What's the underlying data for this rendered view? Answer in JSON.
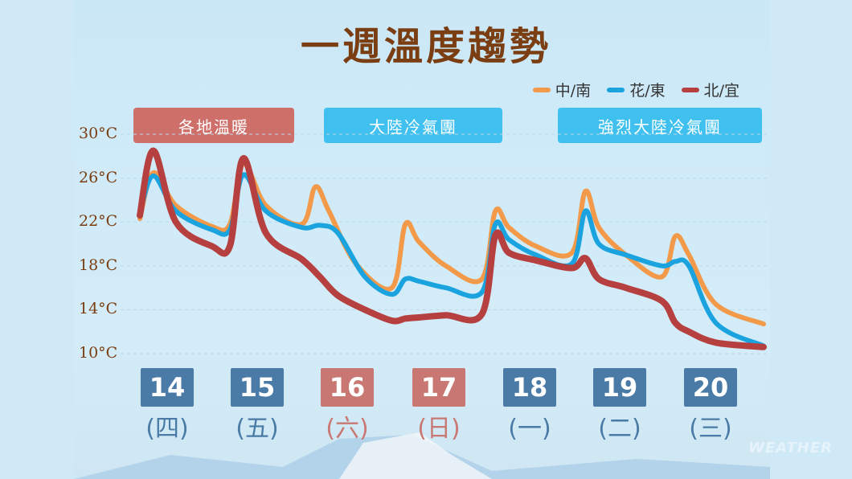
{
  "title": "一週溫度趨勢",
  "legend": [
    {
      "name": "中/南",
      "color": "#f29a4a"
    },
    {
      "name": "花/東",
      "color": "#1aa3de"
    },
    {
      "name": "北/宜",
      "color": "#b5403f"
    }
  ],
  "banners": [
    {
      "text": "各地溫暖",
      "color": "#cf6f6a"
    },
    {
      "text": "大陸冷氣團",
      "color": "#3fc0ef"
    },
    {
      "text": "強烈大陸冷氣團",
      "color": "#3fc0ef"
    }
  ],
  "days": [
    {
      "date": "14",
      "weekday": "(四)",
      "highlight": false
    },
    {
      "date": "15",
      "weekday": "(五)",
      "highlight": false
    },
    {
      "date": "16",
      "weekday": "(六)",
      "highlight": true
    },
    {
      "date": "17",
      "weekday": "(日)",
      "highlight": true
    },
    {
      "date": "18",
      "weekday": "(一)",
      "highlight": false
    },
    {
      "date": "19",
      "weekday": "(二)",
      "highlight": false
    },
    {
      "date": "20",
      "weekday": "(三)",
      "highlight": false
    }
  ],
  "watermark": "WEATHER",
  "colors": {
    "weekday_box": "#4a7ba7",
    "weekend_box": "#c97773",
    "weekday_text": "#4a7ba7",
    "weekend_text": "#c97773"
  },
  "chart_data": {
    "type": "line",
    "ylim": [
      10,
      30
    ],
    "yticks": [
      "30°C",
      "26°C",
      "22°C",
      "18°C",
      "14°C",
      "10°C"
    ],
    "ytick_values": [
      30,
      26,
      22,
      18,
      14,
      10
    ],
    "x_range": [
      14,
      20.93
    ],
    "series": [
      {
        "name": "中/南",
        "x": [
          14.0,
          14.15,
          14.4,
          14.8,
          15.0,
          15.15,
          15.4,
          15.8,
          15.95,
          16.1,
          16.4,
          16.8,
          16.95,
          17.1,
          17.4,
          17.8,
          17.95,
          18.1,
          18.4,
          18.8,
          18.95,
          19.1,
          19.4,
          19.8,
          19.95,
          20.1,
          20.4,
          20.93
        ],
        "values": [
          22.3,
          26.5,
          23.5,
          21.6,
          21.8,
          27.3,
          23.5,
          21.8,
          25.2,
          23.0,
          18.2,
          16.0,
          21.8,
          20.2,
          18.0,
          16.8,
          23.0,
          21.5,
          19.8,
          19.2,
          24.8,
          21.5,
          19.0,
          17.0,
          20.7,
          19.0,
          14.5,
          12.7
        ]
      },
      {
        "name": "花/東",
        "x": [
          14.0,
          14.15,
          14.4,
          14.8,
          15.0,
          15.15,
          15.4,
          15.8,
          16.0,
          16.2,
          16.5,
          16.8,
          16.95,
          17.1,
          17.4,
          17.8,
          17.95,
          18.1,
          18.4,
          18.8,
          18.95,
          19.1,
          19.4,
          19.8,
          19.95,
          20.1,
          20.4,
          20.93
        ],
        "values": [
          22.8,
          26.2,
          23.0,
          21.3,
          21.3,
          26.3,
          23.0,
          21.5,
          21.7,
          21.0,
          17.0,
          15.4,
          16.8,
          16.6,
          16.0,
          15.6,
          21.8,
          20.4,
          19.0,
          18.2,
          23.0,
          20.0,
          19.0,
          18.0,
          18.4,
          18.0,
          12.8,
          10.7
        ]
      },
      {
        "name": "北/宜",
        "x": [
          14.0,
          14.15,
          14.4,
          14.8,
          15.0,
          15.15,
          15.4,
          15.8,
          16.0,
          16.2,
          16.5,
          16.8,
          16.95,
          17.1,
          17.4,
          17.8,
          17.95,
          18.1,
          18.4,
          18.8,
          18.95,
          19.1,
          19.4,
          19.8,
          19.95,
          20.1,
          20.4,
          20.93
        ],
        "values": [
          22.6,
          28.5,
          22.0,
          19.8,
          19.8,
          27.8,
          21.0,
          18.6,
          17.0,
          15.3,
          14.0,
          13.0,
          13.2,
          13.3,
          13.5,
          13.6,
          20.8,
          19.2,
          18.5,
          17.8,
          18.7,
          16.8,
          16.0,
          14.8,
          12.8,
          12.0,
          11.0,
          10.6
        ]
      }
    ]
  }
}
